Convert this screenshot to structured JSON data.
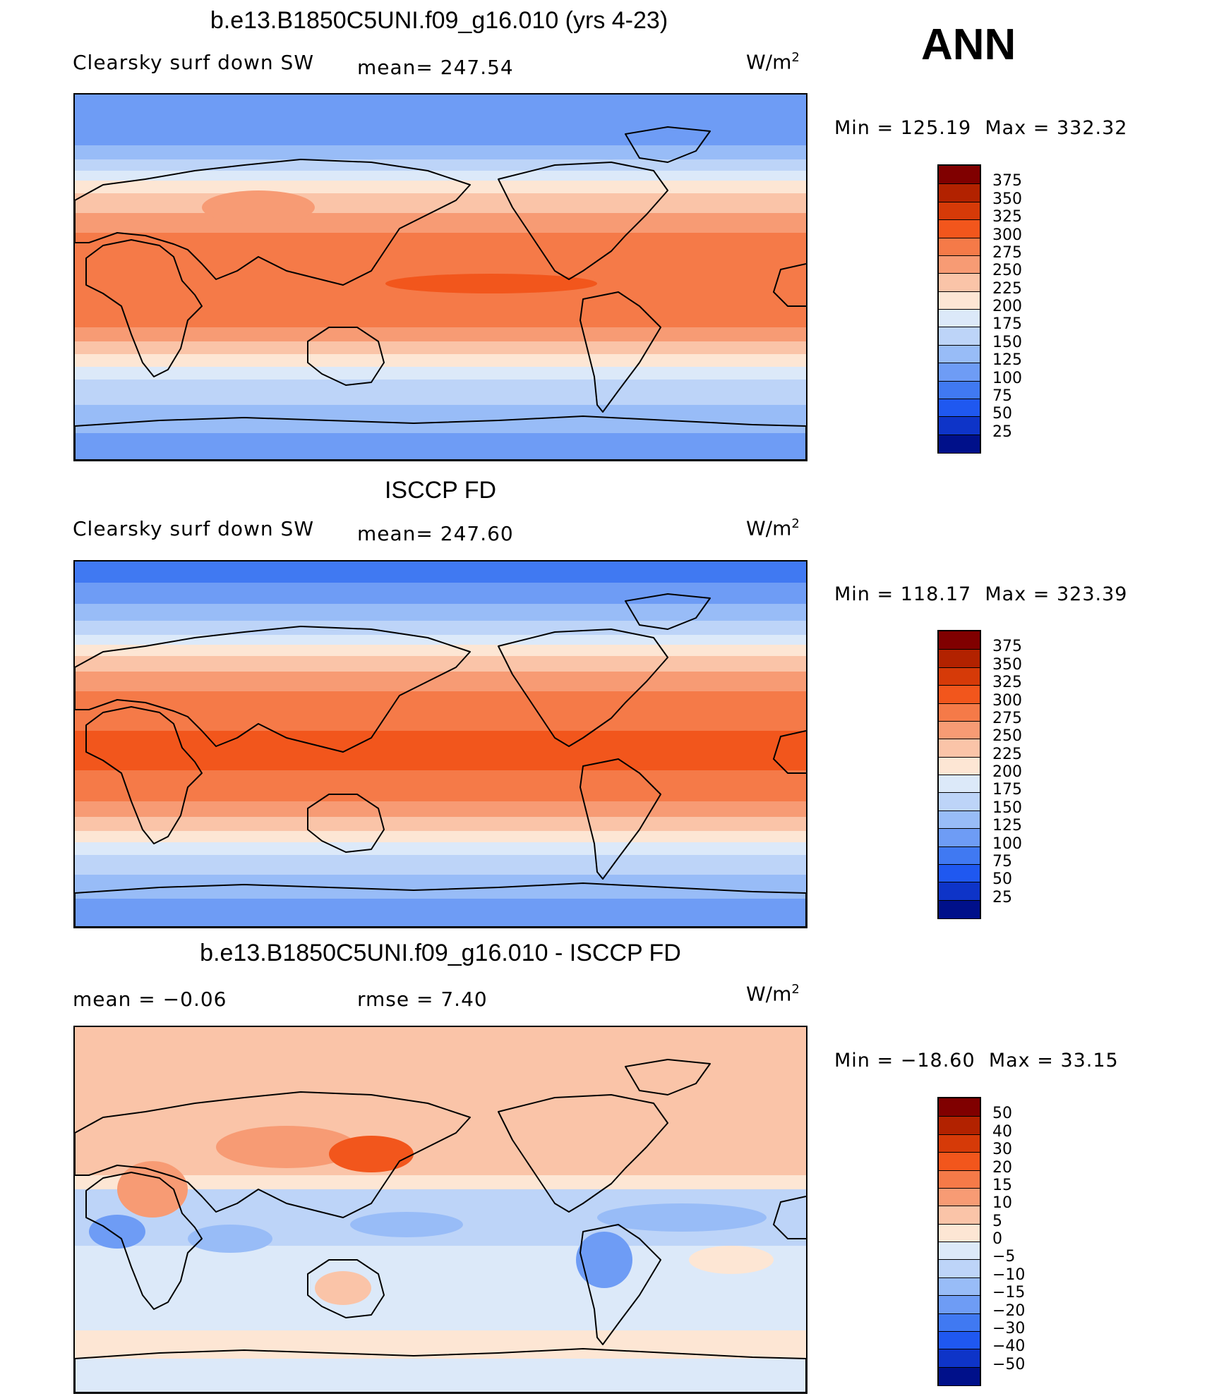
{
  "season": "ANN",
  "units": {
    "base": "W/m",
    "exp": "2"
  },
  "panels": [
    {
      "title": "b.e13.B1850C5UNI.f09_g16.010 (yrs 4-23)",
      "variable": "Clearsky surf down SW",
      "stat1": "mean= 247.54",
      "stat2": "",
      "min_label": "Min",
      "min_value": "125.19",
      "max_label": "Max",
      "max_value": "332.32",
      "style": "abs_a"
    },
    {
      "title": "ISCCP FD",
      "variable": "Clearsky surf down SW",
      "stat1": "mean= 247.60",
      "stat2": "",
      "min_label": "Min",
      "min_value": "118.17",
      "max_label": "Max",
      "max_value": "323.39",
      "style": "abs_b"
    },
    {
      "title": "b.e13.B1850C5UNI.f09_g16.010 - ISCCP FD",
      "variable": "",
      "stat1": "rmse = 7.40",
      "stat2": "mean = −0.06",
      "min_label": "Min",
      "min_value": "−18.60",
      "max_label": "Max",
      "max_value": "33.15",
      "style": "diff"
    }
  ],
  "colorbars": {
    "abs": {
      "levels": [
        "375",
        "350",
        "325",
        "300",
        "275",
        "250",
        "225",
        "200",
        "175",
        "150",
        "125",
        "100",
        "75",
        "50",
        "25"
      ],
      "colors": [
        "#800000",
        "#b22200",
        "#d63a08",
        "#f2561c",
        "#f57a48",
        "#f79b74",
        "#fac4a8",
        "#fde6d4",
        "#dce9f9",
        "#bdd4f8",
        "#98bcf7",
        "#6e9cf5",
        "#4079f2",
        "#1f58f0",
        "#0e34c8",
        "#00108a"
      ]
    },
    "diff": {
      "levels": [
        "50",
        "40",
        "30",
        "20",
        "15",
        "10",
        "5",
        "0",
        "−5",
        "−10",
        "−15",
        "−20",
        "−30",
        "−40",
        "−50"
      ],
      "colors": [
        "#800000",
        "#b22200",
        "#d63a08",
        "#f2561c",
        "#f57a48",
        "#f79b74",
        "#fac4a8",
        "#fde6d4",
        "#dce9f9",
        "#bdd4f8",
        "#98bcf7",
        "#6e9cf5",
        "#4079f2",
        "#1f58f0",
        "#0e34c8",
        "#00108a"
      ]
    }
  }
}
